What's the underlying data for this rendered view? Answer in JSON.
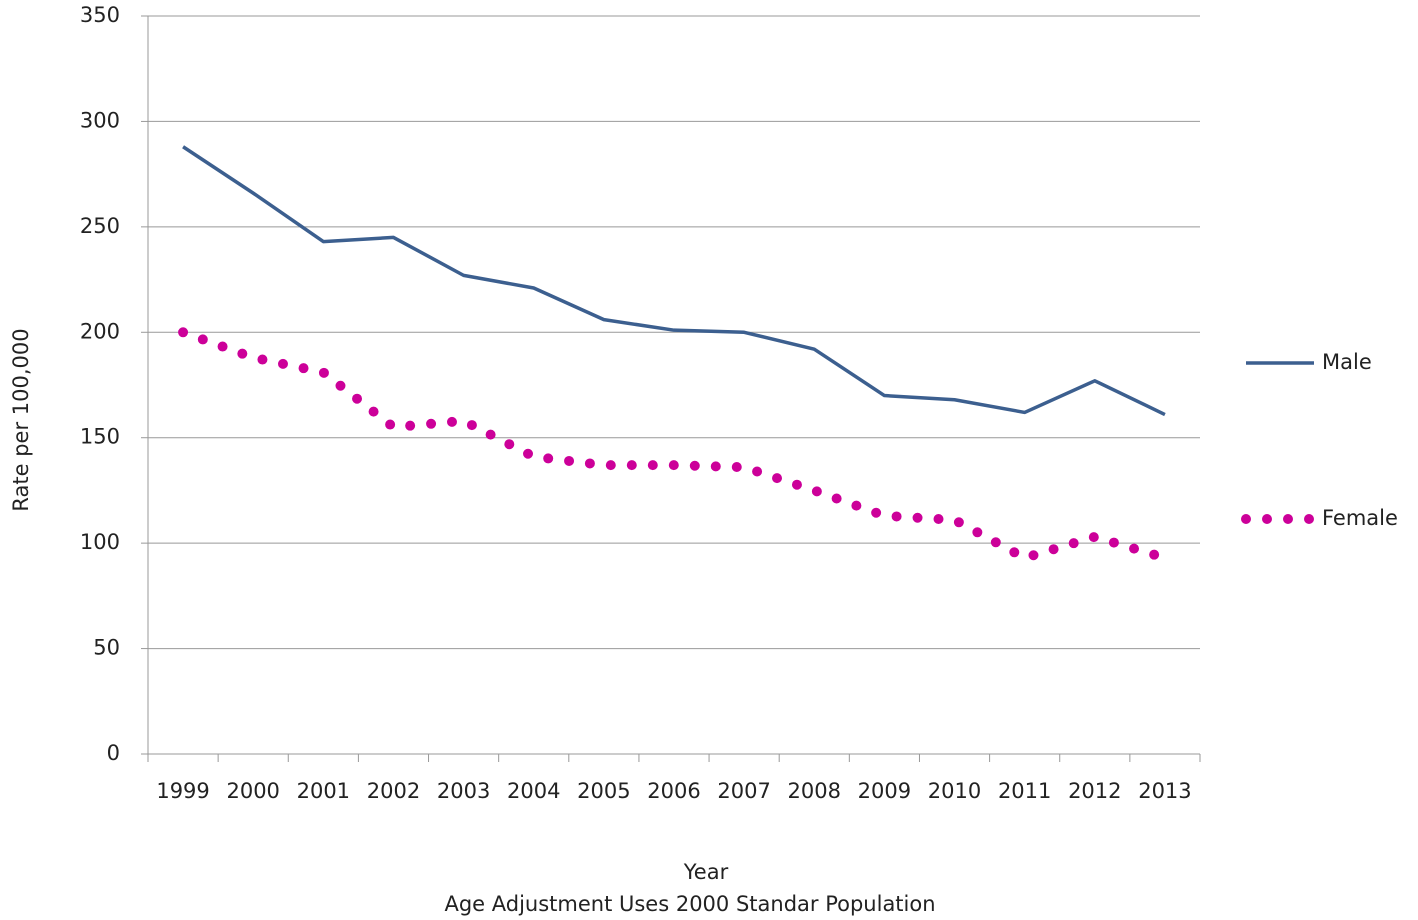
{
  "chart_data": {
    "type": "line",
    "subtitle": "Age Adjustment Uses 2000 Standar Population",
    "x_label": "Year",
    "y_label": "Rate per 100,000",
    "categories": [
      "1999",
      "2000",
      "2001",
      "2002",
      "2003",
      "2004",
      "2005",
      "2006",
      "2007",
      "2008",
      "2009",
      "2010",
      "2011",
      "2012",
      "2013"
    ],
    "series": [
      {
        "name": "Male",
        "color": "#3c5f8f",
        "line_style": "solid",
        "values": [
          288,
          266,
          243,
          245,
          227,
          221,
          206,
          201,
          200,
          192,
          170,
          168,
          162,
          177,
          161
        ]
      },
      {
        "name": "Female",
        "color": "#cc0099",
        "line_style": "dotted",
        "values": [
          200,
          188,
          181,
          155,
          158,
          141,
          137,
          137,
          136,
          125,
          113,
          111,
          93,
          103,
          93
        ]
      }
    ],
    "ylim": [
      0,
      350
    ],
    "yticks": [
      0,
      50,
      100,
      150,
      200,
      250,
      300,
      350
    ],
    "grid": true,
    "legend": "right"
  }
}
